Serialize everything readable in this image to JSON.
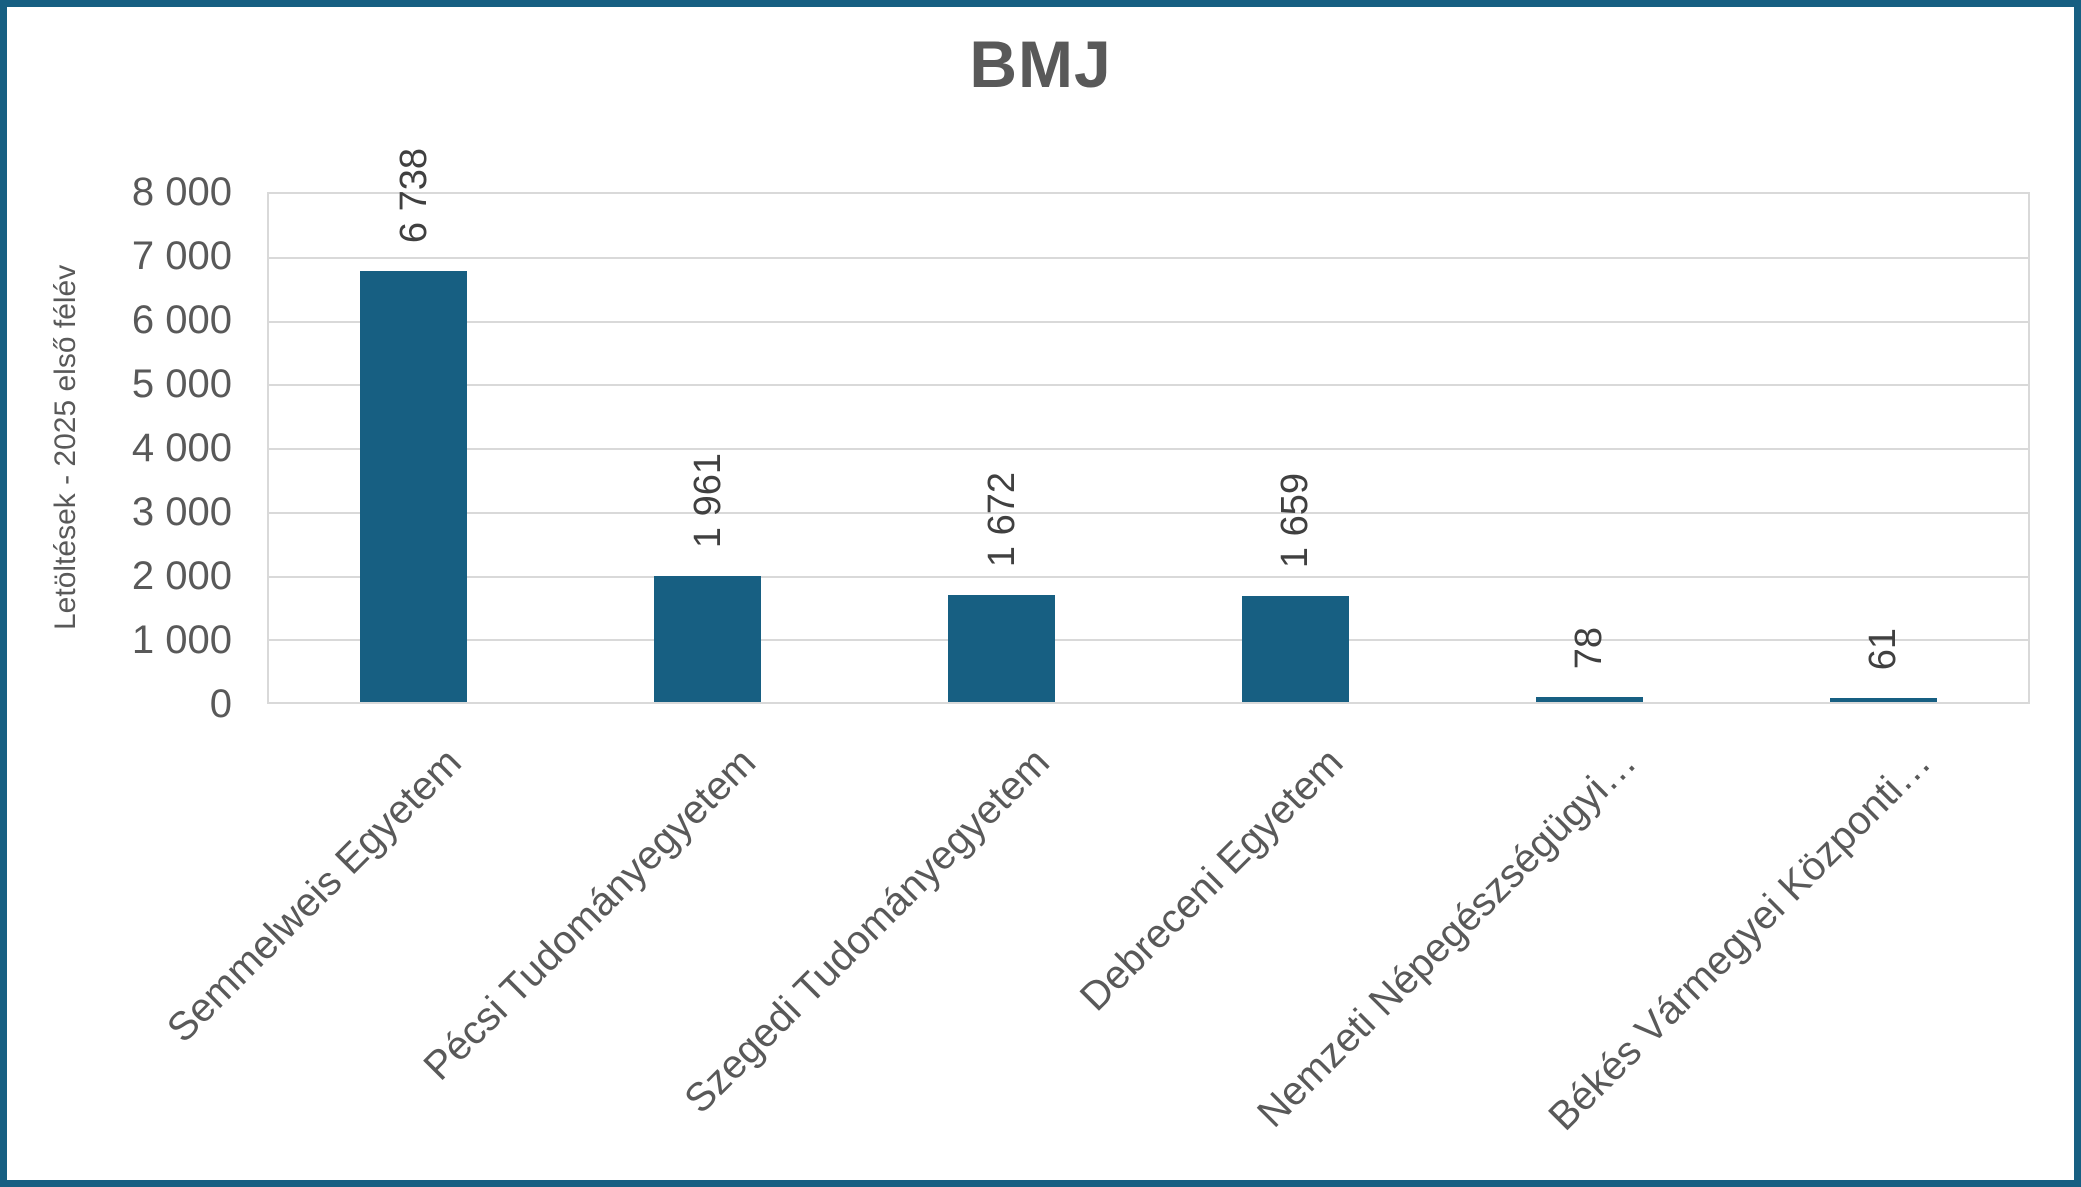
{
  "chart_data": {
    "type": "bar",
    "title": "BMJ",
    "xlabel": "",
    "ylabel": "Letöltések - 2025 első félév",
    "categories": [
      "Semmelweis Egyetem",
      "Pécsi Tudományegyetem",
      "Szegedi Tudományegyetem",
      "Debreceni Egyetem",
      "Nemzeti Népegészségügyi…",
      "Békés Vármegyei Központi…"
    ],
    "values": [
      6738,
      1961,
      1672,
      1659,
      78,
      61
    ],
    "value_labels": [
      "6 738",
      "1 961",
      "1 672",
      "1 659",
      "78",
      "61"
    ],
    "ylim": [
      0,
      8000
    ],
    "y_tick_step": 1000,
    "y_tick_labels": [
      "0",
      "1 000",
      "2 000",
      "3 000",
      "4 000",
      "5 000",
      "6 000",
      "7 000",
      "8 000"
    ],
    "grid": "horizontal",
    "legend": "none",
    "series_color": "#175F82"
  },
  "colors": {
    "frame": "#175F82",
    "bar": "#175F82",
    "gridline": "#D9D9D9",
    "axis_text": "#595959",
    "title_text": "#595959",
    "data_label_text": "#404040",
    "background": "#FFFFFF"
  }
}
